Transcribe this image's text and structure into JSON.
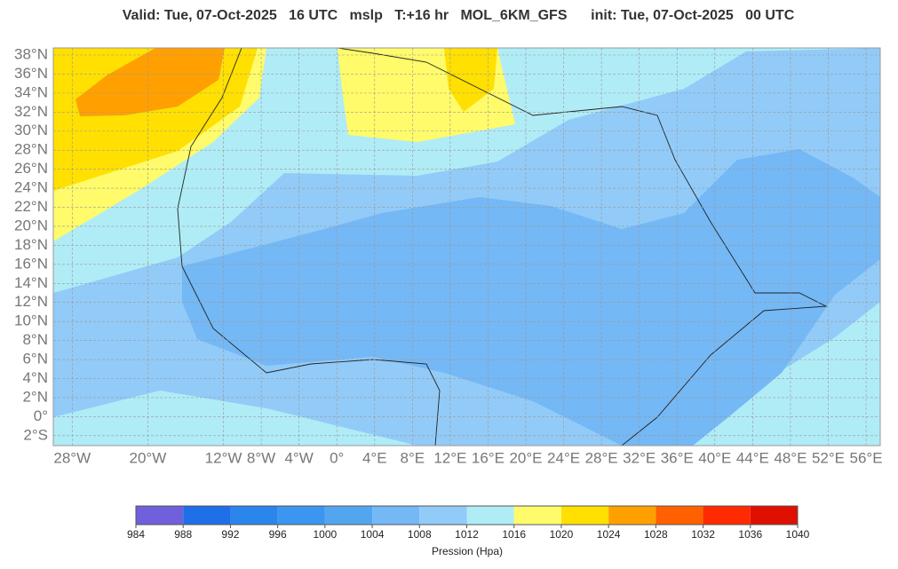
{
  "header": {
    "title": "Valid: Tue, 07-Oct-2025   16 UTC   mslp   T:+16 hr   MOL_6KM_GFS      init: Tue, 07-Oct-2025   00 UTC"
  },
  "map": {
    "lat_labels": [
      {
        "value": 38,
        "label": "38°N"
      },
      {
        "value": 36,
        "label": "36°N"
      },
      {
        "value": 34,
        "label": "34°N"
      },
      {
        "value": 32,
        "label": "32°N"
      },
      {
        "value": 30,
        "label": "30°N"
      },
      {
        "value": 28,
        "label": "28°N"
      },
      {
        "value": 26,
        "label": "26°N"
      },
      {
        "value": 24,
        "label": "24°N"
      },
      {
        "value": 22,
        "label": "22°N"
      },
      {
        "value": 20,
        "label": "20°N"
      },
      {
        "value": 18,
        "label": "18°N"
      },
      {
        "value": 16,
        "label": "16°N"
      },
      {
        "value": 14,
        "label": "14°N"
      },
      {
        "value": 12,
        "label": "12°N"
      },
      {
        "value": 10,
        "label": "10°N"
      },
      {
        "value": 8,
        "label": "8°N"
      },
      {
        "value": 6,
        "label": "6°N"
      },
      {
        "value": 4,
        "label": "4°N"
      },
      {
        "value": 2,
        "label": "2°N"
      },
      {
        "value": 0,
        "label": "0°"
      },
      {
        "value": -2,
        "label": "2°S"
      }
    ],
    "lon_labels": [
      {
        "value": -28,
        "label": "28°W"
      },
      {
        "value": -20,
        "label": "20°W"
      },
      {
        "value": -12,
        "label": "12°W"
      },
      {
        "value": -8,
        "label": "8°W"
      },
      {
        "value": -4,
        "label": "4°W"
      },
      {
        "value": 0,
        "label": "0°"
      },
      {
        "value": 4,
        "label": "4°E"
      },
      {
        "value": 8,
        "label": "8°E"
      },
      {
        "value": 12,
        "label": "12°E"
      },
      {
        "value": 16,
        "label": "16°E"
      },
      {
        "value": 20,
        "label": "20°E"
      },
      {
        "value": 24,
        "label": "24°E"
      },
      {
        "value": 28,
        "label": "28°E"
      },
      {
        "value": 32,
        "label": "32°E"
      },
      {
        "value": 36,
        "label": "36°E"
      },
      {
        "value": 40,
        "label": "40°E"
      },
      {
        "value": 44,
        "label": "44°E"
      },
      {
        "value": 48,
        "label": "48°E"
      },
      {
        "value": 52,
        "label": "52°E"
      },
      {
        "value": 56,
        "label": "56°E"
      }
    ]
  },
  "colorbar": {
    "colors": [
      "#7060dc",
      "#1f6fe8",
      "#2a85ec",
      "#3a96f0",
      "#52a6f0",
      "#74b8f5",
      "#92cbf8",
      "#b0ecf6",
      "#fffb6a",
      "#ffe000",
      "#ffa000",
      "#ff6000",
      "#ff2a00",
      "#e01000"
    ],
    "ticks": [
      984,
      988,
      992,
      996,
      1000,
      1004,
      1008,
      1012,
      1016,
      1020,
      1024,
      1028,
      1032,
      1036,
      1040
    ],
    "label": "Pression (Hpa)"
  }
}
